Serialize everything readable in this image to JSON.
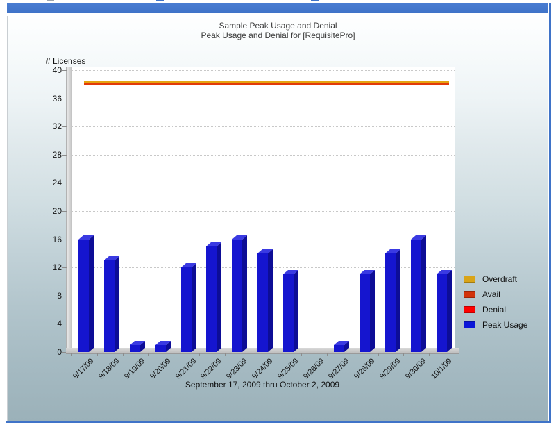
{
  "chart_data": {
    "type": "bar",
    "title": "Sample Peak Usage and Denial",
    "subtitle": "Peak Usage and Denial for [RequisitePro]",
    "ylabel": "# Licenses",
    "xlabel": "September 17, 2009 thru October 2, 2009",
    "categories": [
      "9/17/09",
      "9/18/09",
      "9/19/09",
      "9/20/09",
      "9/21/09",
      "9/22/09",
      "9/23/09",
      "9/24/09",
      "9/25/09",
      "9/26/09",
      "9/27/09",
      "9/28/09",
      "9/29/09",
      "9/30/09",
      "10/1/09"
    ],
    "series": [
      {
        "name": "Peak Usage",
        "type": "bar",
        "color": "#1515cf",
        "values": [
          16,
          13,
          1,
          1,
          12,
          15,
          16,
          14,
          11,
          0,
          1,
          11,
          14,
          16,
          11
        ]
      },
      {
        "name": "Avail",
        "type": "line",
        "color": "#e23a08",
        "values": [
          38,
          38,
          38,
          38,
          38,
          38,
          38,
          38,
          38,
          38,
          38,
          38,
          38,
          38,
          38
        ]
      },
      {
        "name": "Overdraft",
        "type": "line",
        "color": "#e4a411",
        "values": [
          38,
          38,
          38,
          38,
          38,
          38,
          38,
          38,
          38,
          38,
          38,
          38,
          38,
          38,
          38
        ]
      },
      {
        "name": "Denial",
        "type": "bar",
        "color": "#fe0000",
        "values": [
          0,
          0,
          0,
          0,
          0,
          0,
          0,
          0,
          0,
          0,
          0,
          0,
          0,
          0,
          0
        ]
      }
    ],
    "ylim": [
      0,
      40
    ],
    "ytick_step": 4,
    "grid": "dotted-horizontal",
    "legend_position": "right",
    "legend": [
      {
        "label": "Overdraft",
        "color": "#d9a418"
      },
      {
        "label": "Avail",
        "color": "#d2330b"
      },
      {
        "label": "Denial",
        "color": "#fe0000"
      },
      {
        "label": "Peak Usage",
        "color": "#0b16d8"
      }
    ],
    "bar_colors": {
      "front": "#1515cf",
      "top": "#3a3ae2",
      "side": "#0d0d96"
    }
  }
}
